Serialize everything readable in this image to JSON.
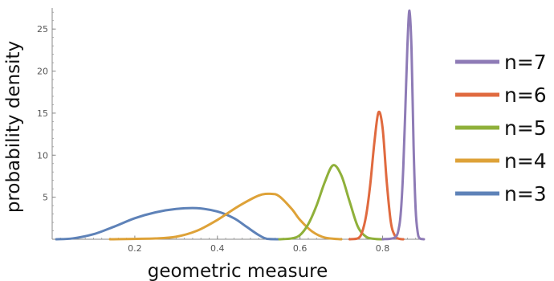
{
  "chart_data": {
    "type": "line",
    "title": "",
    "xlabel": "geometric measure",
    "ylabel": "probability density",
    "xlim": [
      0.0,
      0.9
    ],
    "ylim": [
      0,
      27.5
    ],
    "x_ticks": [
      {
        "value": 0.2,
        "label": "0.2"
      },
      {
        "value": 0.4,
        "label": "0.4"
      },
      {
        "value": 0.6,
        "label": "0.6"
      },
      {
        "value": 0.8,
        "label": "0.8"
      }
    ],
    "y_ticks": [
      {
        "value": 5,
        "label": "5"
      },
      {
        "value": 10,
        "label": "10"
      },
      {
        "value": 15,
        "label": "15"
      },
      {
        "value": 20,
        "label": "20"
      },
      {
        "value": 25,
        "label": "25"
      }
    ],
    "grid": false,
    "legend_position": "right",
    "series": [
      {
        "name": "n=7",
        "color": "#8E7BB6",
        "x": [
          0.8,
          0.83,
          0.84,
          0.845,
          0.85,
          0.855,
          0.86,
          0.865,
          0.87,
          0.875,
          0.88,
          0.885,
          0.89,
          0.9
        ],
        "y": [
          0,
          0.2,
          1.5,
          3.8,
          8.5,
          15.5,
          23.0,
          27.2,
          22.5,
          11.0,
          3.5,
          0.8,
          0.1,
          0
        ]
      },
      {
        "name": "n=6",
        "color": "#E06A3F",
        "x": [
          0.72,
          0.74,
          0.75,
          0.76,
          0.77,
          0.78,
          0.79,
          0.8,
          0.81,
          0.82,
          0.83,
          0.84,
          0.85
        ],
        "y": [
          0,
          0.1,
          0.8,
          2.8,
          6.5,
          11.5,
          15.1,
          13.2,
          6.8,
          2.0,
          0.4,
          0.05,
          0
        ]
      },
      {
        "name": "n=5",
        "color": "#8FB03A",
        "x": [
          0.55,
          0.58,
          0.6,
          0.62,
          0.64,
          0.66,
          0.68,
          0.7,
          0.72,
          0.74,
          0.76,
          0.78,
          0.8
        ],
        "y": [
          0,
          0.1,
          0.5,
          1.8,
          4.0,
          6.8,
          8.8,
          7.6,
          4.5,
          1.5,
          0.3,
          0.05,
          0
        ]
      },
      {
        "name": "n=4",
        "color": "#DEA238",
        "x": [
          0.14,
          0.25,
          0.3,
          0.35,
          0.4,
          0.45,
          0.5,
          0.53,
          0.55,
          0.58,
          0.6,
          0.63,
          0.66,
          0.7
        ],
        "y": [
          0,
          0.1,
          0.3,
          1.0,
          2.3,
          3.9,
          5.2,
          5.4,
          5.1,
          3.6,
          2.3,
          0.9,
          0.2,
          0
        ]
      },
      {
        "name": "n=3",
        "color": "#5E82B8",
        "x": [
          0.01,
          0.05,
          0.1,
          0.15,
          0.2,
          0.25,
          0.3,
          0.35,
          0.4,
          0.44,
          0.47,
          0.5,
          0.52,
          0.55
        ],
        "y": [
          0,
          0.1,
          0.6,
          1.5,
          2.5,
          3.2,
          3.6,
          3.7,
          3.3,
          2.5,
          1.5,
          0.5,
          0.05,
          0
        ]
      }
    ]
  }
}
